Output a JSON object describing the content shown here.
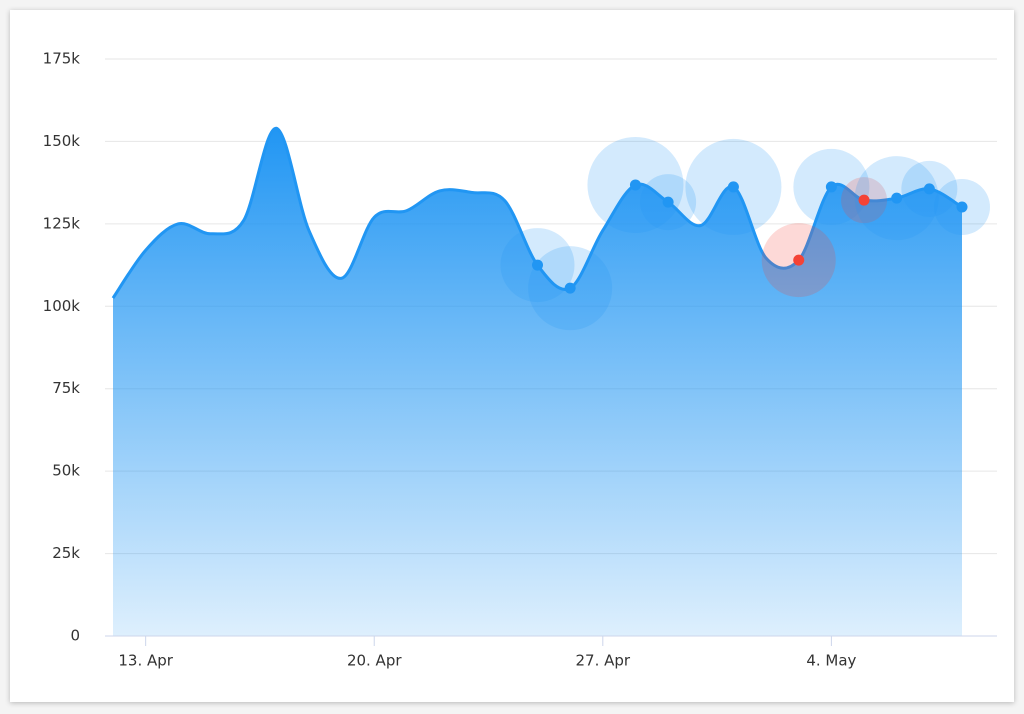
{
  "chart_data": {
    "type": "area",
    "categories": [
      null,
      "13. Apr",
      null,
      null,
      null,
      null,
      null,
      null,
      "20. Apr",
      null,
      null,
      null,
      null,
      null,
      null,
      "27. Apr",
      null,
      null,
      null,
      null,
      null,
      null,
      "4. May",
      null,
      null,
      null,
      null
    ],
    "series": [
      {
        "color": "#2196f3",
        "values": [
          102500,
          117000,
          125000,
          122000,
          126000,
          154000,
          123000,
          108500,
          127000,
          129000,
          135000,
          134500,
          132000,
          112500,
          105500,
          123000,
          136800,
          131600,
          124500,
          136200,
          114600,
          114000,
          136200,
          132200,
          132800,
          135600,
          130100
        ],
        "sizes": [
          null,
          null,
          null,
          null,
          null,
          null,
          null,
          null,
          null,
          null,
          null,
          null,
          null,
          37,
          42,
          null,
          48,
          28,
          null,
          48,
          null,
          37,
          38,
          23,
          42,
          28,
          28
        ],
        "marker_colors": [
          null,
          null,
          null,
          null,
          null,
          null,
          null,
          null,
          null,
          null,
          null,
          null,
          null,
          "#2196f3",
          "#2196f3",
          null,
          "#2196f3",
          "#2196f3",
          null,
          "#2196f3",
          null,
          "#f44336",
          "#2196f3",
          "#f44336",
          "#2196f3",
          "#2196f3",
          "#2196f3"
        ]
      }
    ],
    "ylim": [
      0,
      175000
    ],
    "yticks": [
      0,
      {
        "value": 25000,
        "label": "25k"
      },
      {
        "value": 50000,
        "label": "50k"
      },
      {
        "value": 75000,
        "label": "75k"
      },
      {
        "value": 100000,
        "label": "100k"
      },
      {
        "value": 125000,
        "label": "125k"
      },
      {
        "value": 150000,
        "label": "150k"
      },
      {
        "value": 175000,
        "label": "175k"
      }
    ],
    "grid": true
  }
}
